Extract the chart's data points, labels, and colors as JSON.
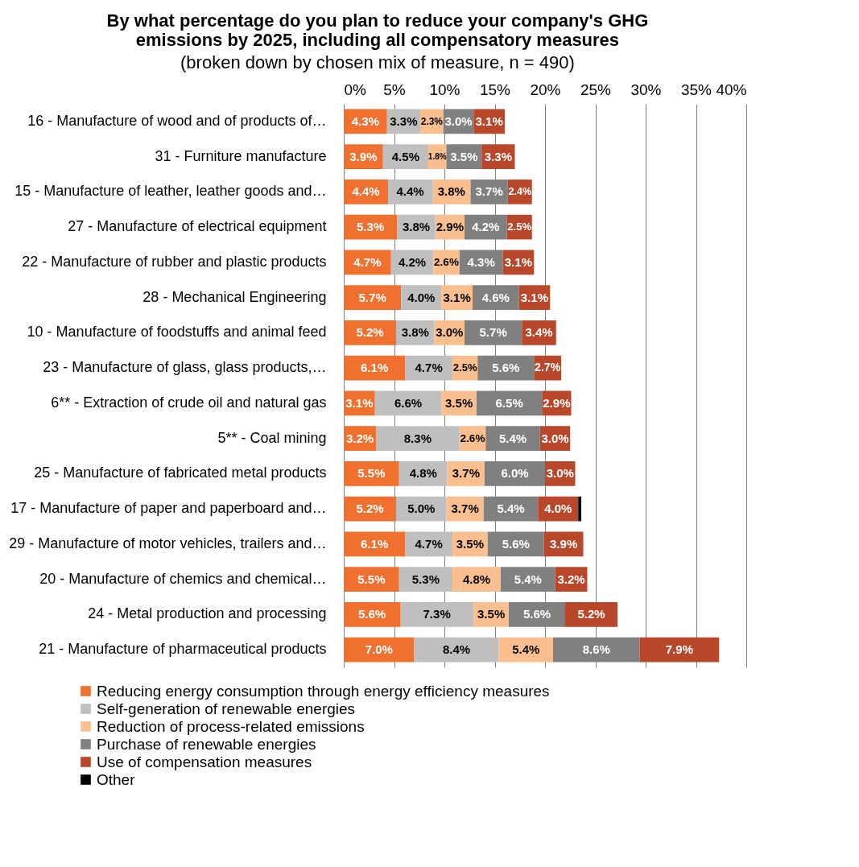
{
  "chart_data": {
    "type": "bar",
    "orientation": "horizontal",
    "stacked": true,
    "title": "By what percentage do you plan to reduce your company's GHG emissions by 2025, including all compensatory measures",
    "subtitle": "(broken down by chosen mix of measure,  n = 490)",
    "categories": [
      "16 - Manufacture of wood and of products of…",
      "31 - Furniture manufacture",
      "15 - Manufacture of leather, leather goods and…",
      "27 - Manufacture of electrical equipment",
      "22 - Manufacture of rubber and plastic products",
      "28 - Mechanical Engineering",
      "10 - Manufacture of foodstuffs and animal feed",
      "23 - Manufacture of glass, glass products,…",
      "6** - Extraction of crude oil and natural gas",
      "5** - Coal mining",
      "25 - Manufacture of fabricated metal products",
      "17 - Manufacture of paper and paperboard and…",
      "29 - Manufacture of motor vehicles, trailers and…",
      "20 - Manufacture of chemics and chemical…",
      "24 - Metal production and processing",
      "21 - Manufacture of pharmaceutical products"
    ],
    "series": [
      {
        "name": "Reducing energy consumption through energy efficiency measures",
        "color": "#f07030",
        "values": [
          4.3,
          3.9,
          4.4,
          5.3,
          4.7,
          5.7,
          5.2,
          6.1,
          3.1,
          3.2,
          5.5,
          5.2,
          6.1,
          5.5,
          5.6,
          7.0
        ],
        "value_labels": [
          "4.3%",
          "3.9%",
          "4.4%",
          "5.3%",
          "4.7%",
          "5.7%",
          "5.2%",
          "6.1%",
          "3.1%",
          "3.2%",
          "5.5%",
          "5.2%",
          "6.1%",
          "5.5%",
          "5.6%",
          "7.0%"
        ]
      },
      {
        "name": "Self-generation of renewable energies",
        "color": "#bfbfbf",
        "values": [
          3.3,
          4.5,
          4.4,
          3.8,
          4.2,
          4.0,
          3.8,
          4.7,
          6.6,
          8.3,
          4.8,
          5.0,
          4.7,
          5.3,
          7.3,
          8.4
        ],
        "value_labels": [
          "3.3%",
          "4.5%",
          "4.4%",
          "3.8%",
          "4.2%",
          "4.0%",
          "3.8%",
          "4.7%",
          "6.6%",
          "8.3%",
          "4.8%",
          "5.0%",
          "4.7%",
          "5.3%",
          "7.3%",
          "8.4%"
        ]
      },
      {
        "name": "Reduction of process-related emissions",
        "color": "#fbbf8f",
        "values": [
          2.3,
          1.8,
          3.8,
          2.9,
          2.6,
          3.1,
          3.0,
          2.5,
          3.5,
          2.6,
          3.7,
          3.7,
          3.5,
          4.8,
          3.5,
          5.4
        ],
        "value_labels": [
          "2.3%",
          "1.8%",
          "3.8%",
          "2.9%",
          "2.6%",
          "3.1%",
          "3.0%",
          "2.5%",
          "3.5%",
          "2.6%",
          "3.7%",
          "3.7%",
          "3.5%",
          "4.8%",
          "3.5%",
          "5.4%"
        ]
      },
      {
        "name": "Purchase of renewable energies",
        "color": "#808080",
        "values": [
          3.0,
          3.5,
          3.7,
          4.2,
          4.3,
          4.6,
          5.7,
          5.6,
          6.5,
          5.4,
          6.0,
          5.4,
          5.6,
          5.4,
          5.6,
          8.6
        ],
        "value_labels": [
          "3.0%",
          "3.5%",
          "3.7%",
          "4.2%",
          "4.3%",
          "4.6%",
          "5.7%",
          "5.6%",
          "6.5%",
          "5.4%",
          "6.0%",
          "5.4%",
          "5.6%",
          "5.4%",
          "5.6%",
          "8.6%"
        ]
      },
      {
        "name": "Use of compensation measures",
        "color": "#b9482b",
        "values": [
          3.1,
          3.3,
          2.4,
          2.5,
          3.1,
          3.1,
          3.4,
          2.7,
          2.9,
          3.0,
          3.0,
          4.0,
          3.9,
          3.2,
          5.2,
          7.9
        ],
        "value_labels": [
          "3.1%",
          "3.3%",
          "2.4%",
          "2.5%",
          "3.1%",
          "3.1%",
          "3.4%",
          "2.7%",
          "2.9%",
          "3.0%",
          "3.0%",
          "4.0%",
          "3.9%",
          "3.2%",
          "5.2%",
          "7.9%"
        ]
      },
      {
        "name": "Other",
        "color": "#000000",
        "values": [
          null,
          null,
          null,
          null,
          null,
          null,
          null,
          null,
          null,
          null,
          null,
          0.3,
          null,
          null,
          null,
          null
        ]
      }
    ],
    "xlim": [
      0,
      40
    ],
    "xticks": [
      {
        "value": 0,
        "label": "0%"
      },
      {
        "value": 5,
        "label": "5%"
      },
      {
        "value": 10,
        "label": "10%"
      },
      {
        "value": 15,
        "label": "15%"
      },
      {
        "value": 20,
        "label": "20%"
      },
      {
        "value": 25,
        "label": "25%"
      },
      {
        "value": 30,
        "label": "30%"
      },
      {
        "value": 35,
        "label": "35%"
      },
      {
        "value": 40,
        "label": "40%"
      }
    ],
    "grid": "x",
    "legend": "bottom"
  }
}
